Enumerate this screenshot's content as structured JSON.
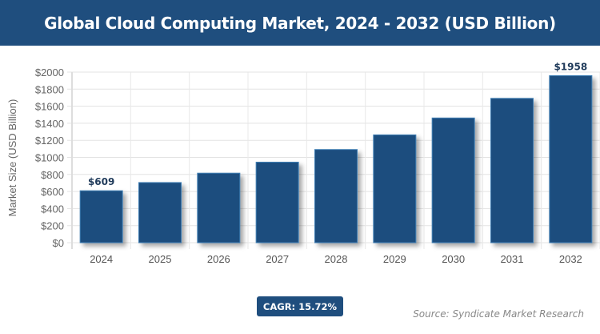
{
  "header": {
    "title": "Global Cloud Computing Market, 2024 - 2032 (USD Billion)"
  },
  "chart_data": {
    "type": "bar",
    "title": "Global Cloud Computing Market, 2024 - 2032 (USD Billion)",
    "categories": [
      "2024",
      "2025",
      "2026",
      "2027",
      "2028",
      "2029",
      "2030",
      "2031",
      "2032"
    ],
    "values": [
      609,
      705,
      815,
      944,
      1092,
      1264,
      1462,
      1692,
      1958
    ],
    "data_labels": {
      "0": "$609",
      "8": "$1958"
    },
    "xlabel": "",
    "ylabel": "Market Size (USD Billion)",
    "ylim": [
      0,
      2000
    ],
    "yticks": [
      "$0",
      "$200",
      "$400",
      "$600",
      "$800",
      "$1000",
      "$1200",
      "$1400",
      "$1600",
      "$1800",
      "$2000"
    ],
    "grid": true,
    "bar_color": "#1f4e7e"
  },
  "footer": {
    "cagr": "CAGR: 15.72%",
    "source": "Source: Syndicate Market Research"
  }
}
